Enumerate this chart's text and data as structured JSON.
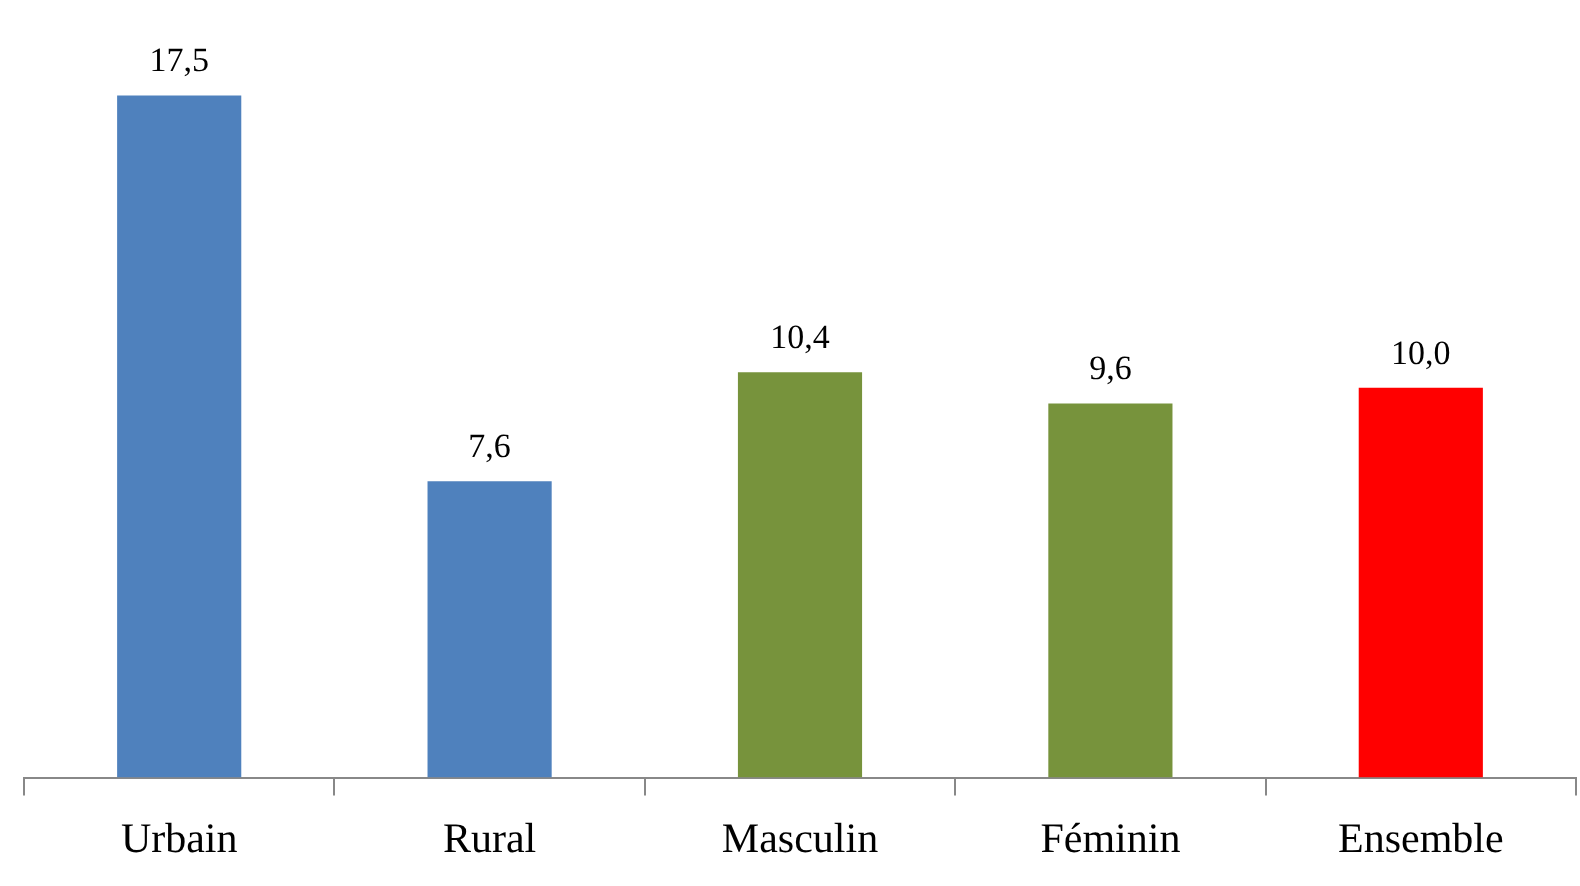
{
  "chart_data": {
    "type": "bar",
    "categories": [
      "Urbain",
      "Rural",
      "Masculin",
      "Féminin",
      "Ensemble"
    ],
    "values": [
      17.5,
      7.6,
      10.4,
      9.6,
      10.0
    ],
    "colors": [
      "#4f81bd",
      "#4f81bd",
      "#77933c",
      "#77933c",
      "#ff0000"
    ],
    "value_labels": [
      "17,5",
      "7,6",
      "10,4",
      "9,6",
      "10,0"
    ],
    "grid": false,
    "legend": false
  }
}
